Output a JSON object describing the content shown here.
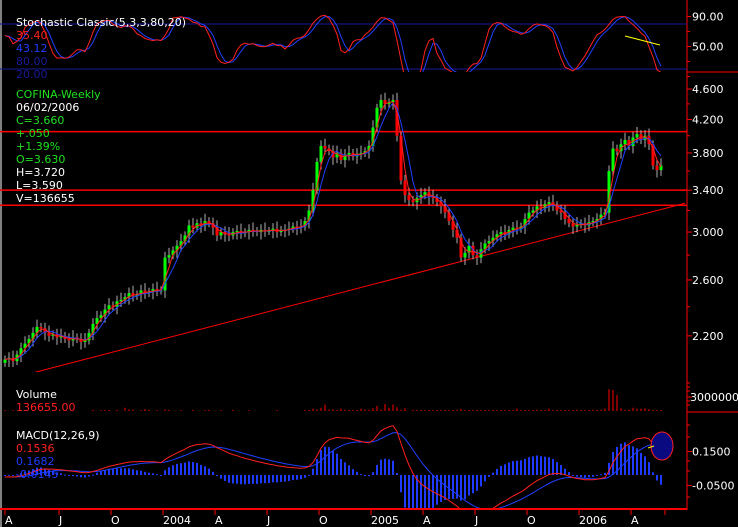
{
  "chart_data": [
    {
      "type": "line",
      "panel": "stochastic",
      "title": "Stochastic Classic(5,3,3,80,20)",
      "legend_values": {
        "k": "35.40",
        "d": "43.12",
        "upper": "80.00",
        "lower": "20.00"
      },
      "levels": [
        80,
        20
      ],
      "ylim": [
        0,
        100
      ],
      "y_tick_labels": [
        "90.00",
        "50.00"
      ],
      "colors": {
        "k": "#ff2020",
        "d": "#2040ff",
        "levels": "#1a1a9a"
      }
    },
    {
      "type": "candlestick",
      "panel": "price",
      "title": "COFINA-Weekly",
      "header": {
        "date": "06/02/2006",
        "close": "C=3.660",
        "change": "+.050",
        "change_pct": "+1.39%",
        "open": "O=3.630",
        "high": "H=3.720",
        "low": "L=3.590",
        "volume": "V=136655"
      },
      "y_scale": "log",
      "ylim": [
        1.95,
        4.75
      ],
      "y_tick_labels": [
        "4.600",
        "4.200",
        "3.800",
        "3.400",
        "3.000",
        "2.600",
        "2.200"
      ],
      "y_ticks": [
        4.6,
        4.2,
        3.8,
        3.4,
        3.0,
        2.6,
        2.2
      ],
      "moving_averages": [
        {
          "color": "#ff2020"
        },
        {
          "color": "#2040ff"
        }
      ],
      "horizontal_lines": [
        4.05,
        3.4,
        3.25
      ],
      "trendline": {
        "from": {
          "week": 7,
          "price": 1.97
        },
        "to": {
          "week": 170,
          "price": 3.27
        }
      },
      "up_color": "#00ff00",
      "down_color": "#ff0000",
      "closes": [
        2.05,
        2.06,
        2.04,
        2.08,
        2.12,
        2.15,
        2.18,
        2.22,
        2.26,
        2.25,
        2.22,
        2.2,
        2.21,
        2.19,
        2.2,
        2.18,
        2.17,
        2.19,
        2.18,
        2.16,
        2.17,
        2.22,
        2.28,
        2.32,
        2.34,
        2.38,
        2.41,
        2.4,
        2.44,
        2.45,
        2.47,
        2.5,
        2.48,
        2.49,
        2.52,
        2.5,
        2.51,
        2.53,
        2.52,
        2.52,
        2.78,
        2.8,
        2.84,
        2.88,
        2.92,
        2.97,
        3.06,
        3.04,
        3.08,
        3.06,
        3.1,
        3.08,
        3.04,
        2.97,
        3.0,
        2.98,
        2.97,
        3.0,
        3.01,
        2.99,
        3.0,
        3.02,
        3.01,
        3.0,
        3.02,
        3.01,
        3.01,
        3.03,
        3.0,
        3.02,
        3.02,
        3.03,
        3.05,
        3.04,
        3.05,
        3.1,
        3.2,
        3.4,
        3.7,
        3.88,
        3.85,
        3.82,
        3.75,
        3.8,
        3.72,
        3.78,
        3.8,
        3.76,
        3.79,
        3.8,
        3.82,
        3.88,
        4.1,
        4.35,
        4.45,
        4.4,
        4.42,
        4.45,
        4.0,
        3.5,
        3.35,
        3.3,
        3.28,
        3.32,
        3.35,
        3.38,
        3.33,
        3.32,
        3.28,
        3.24,
        3.18,
        3.1,
        3.02,
        2.95,
        2.78,
        2.82,
        2.88,
        2.8,
        2.78,
        2.85,
        2.9,
        2.92,
        2.95,
        2.98,
        3.0,
        2.98,
        3.02,
        3.04,
        3.03,
        3.05,
        3.12,
        3.18,
        3.2,
        3.24,
        3.22,
        3.26,
        3.28,
        3.25,
        3.2,
        3.18,
        3.12,
        3.08,
        3.05,
        3.07,
        3.08,
        3.06,
        3.09,
        3.1,
        3.12,
        3.16,
        3.18,
        3.6,
        3.85,
        3.82,
        3.9,
        3.95,
        3.88,
        3.98,
        4.02,
        3.95,
        4.0,
        3.9,
        3.66,
        3.61,
        3.66
      ]
    },
    {
      "type": "bar",
      "panel": "volume",
      "title": "Volume",
      "legend_value": "136655.00",
      "y_tick_labels": [
        "3000000"
      ],
      "color": "#ff0000",
      "values": [
        150000,
        0,
        150000,
        0,
        0,
        200000,
        0,
        150000,
        0,
        0,
        200000,
        0,
        0,
        0,
        0,
        150000,
        0,
        0,
        0,
        0,
        0,
        0,
        250000,
        0,
        150000,
        250000,
        200000,
        0,
        250000,
        0,
        700000,
        350000,
        300000,
        0,
        200000,
        400000,
        250000,
        0,
        200000,
        0,
        300000,
        250000,
        0,
        0,
        200000,
        0,
        0,
        250000,
        0,
        0,
        150000,
        250000,
        0,
        0,
        150000,
        0,
        0,
        250000,
        0,
        0,
        0,
        150000,
        0,
        0,
        0,
        0,
        0,
        0,
        150000,
        0,
        0,
        0,
        0,
        0,
        0,
        250000,
        200000,
        500000,
        300000,
        700000,
        1400000,
        300000,
        350000,
        200000,
        500000,
        300000,
        200000,
        250000,
        200000,
        500000,
        300000,
        250000,
        600000,
        1100000,
        300000,
        1500000,
        700000,
        1400000,
        800000,
        250000,
        600000,
        0,
        250000,
        200000,
        250000,
        200000,
        200000,
        200000,
        200000,
        200000,
        250000,
        200000,
        200000,
        250000,
        450000,
        200000,
        200000,
        200000,
        250000,
        200000,
        200000,
        200000,
        250000,
        200000,
        200000,
        250000,
        200000,
        200000,
        500000,
        200000,
        200000,
        250000,
        200000,
        300000,
        200000,
        200000,
        500000,
        200000,
        250000,
        200000,
        200000,
        250000,
        200000,
        300000,
        200000,
        250000,
        200000,
        300000,
        250000,
        250000,
        500000,
        4700000,
        4500000,
        3400000,
        600000,
        250000,
        300000,
        700000,
        500000,
        500000,
        600000,
        400000,
        200000,
        200000,
        136655
      ],
      "color_ref": "#ff0000"
    },
    {
      "type": "line",
      "panel": "macd",
      "title": "MACD(12,26,9)",
      "legend_values": {
        "macd": "0.1536",
        "signal": "0.1682",
        "histogram": "-0.0145"
      },
      "y_tick_labels": [
        "0.1500",
        "-0.0500"
      ],
      "y_ticks": [
        0.15,
        -0.05
      ],
      "colors": {
        "macd": "#ff2020",
        "signal": "#2040ff",
        "histogram": "#1f3bff"
      },
      "annotation": {
        "shape": "ellipse",
        "fill": "#0a0a80",
        "stroke": "#ff2020"
      }
    }
  ],
  "x_axis": {
    "tick_labels": [
      "A",
      "J",
      "O",
      "2004",
      "A",
      "J",
      "O",
      "2005",
      "A",
      "J",
      "O",
      "2006",
      "A"
    ],
    "tick_weeks": [
      0,
      13,
      26,
      39,
      52,
      65,
      78,
      91,
      104,
      117,
      130,
      143,
      156
    ]
  }
}
